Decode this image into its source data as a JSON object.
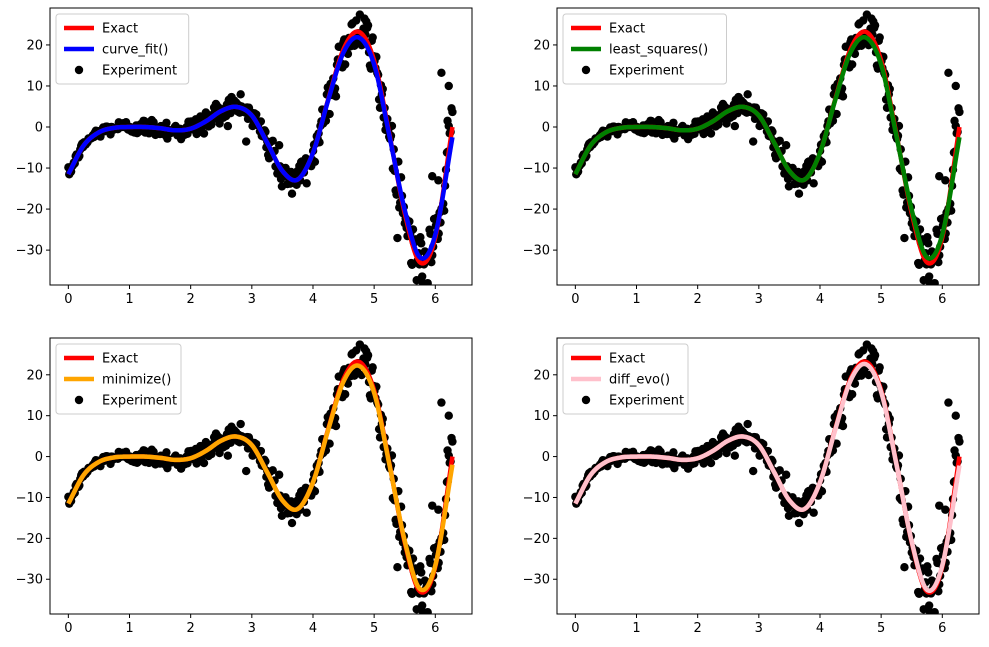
{
  "figure": {
    "panel_titles": [
      "",
      "",
      "",
      ""
    ]
  },
  "chart_data": [
    {
      "type": "line",
      "title": "",
      "xlabel": "",
      "ylabel": "",
      "xlim": [
        -0.3,
        6.6
      ],
      "ylim": [
        -38.5,
        29
      ],
      "xticks": [
        0,
        1,
        2,
        3,
        4,
        5,
        6
      ],
      "yticks": [
        -30,
        -20,
        -10,
        0,
        10,
        20
      ],
      "grid": false,
      "legend_position": "top-left",
      "series": [
        {
          "name": "Exact",
          "kind": "line",
          "color": "#ff0000"
        },
        {
          "name": "curve_fit()",
          "kind": "line",
          "color": "#0000ff"
        },
        {
          "name": "Experiment",
          "kind": "scatter",
          "color": "#000000"
        }
      ],
      "x": [
        0.0,
        0.25,
        0.5,
        0.75,
        1.0,
        1.25,
        1.5,
        1.75,
        2.0,
        2.25,
        2.5,
        2.75,
        3.0,
        3.25,
        3.5,
        3.75,
        4.0,
        4.25,
        4.5,
        4.75,
        5.0,
        5.25,
        5.5,
        5.75,
        6.0,
        6.28
      ],
      "exact": [
        -11.5,
        -4.5,
        -1.3,
        -0.2,
        0.0,
        0.0,
        -0.3,
        -0.8,
        -0.4,
        1.4,
        3.9,
        4.9,
        2.8,
        -3.8,
        -10.7,
        -12.8,
        -6.3,
        6.8,
        19.0,
        23.2,
        16.2,
        -1.8,
        -21.0,
        -33.0,
        -26.9,
        0.0
      ],
      "fit": [
        -11.5,
        -4.5,
        -1.3,
        -0.2,
        0.0,
        0.0,
        -0.3,
        -0.8,
        -0.4,
        1.4,
        3.9,
        4.9,
        2.8,
        -3.8,
        -10.7,
        -12.8,
        -6.3,
        6.6,
        18.2,
        21.8,
        15.2,
        -2.2,
        -20.2,
        -31.8,
        -26.2,
        -2.5
      ],
      "noise": {
        "amplitude_start": 0.6,
        "amplitude_growth": 0.55,
        "outliers": [
          [
            6.1,
            13.2
          ],
          [
            6.22,
            10.0
          ],
          [
            6.2,
            1.5
          ],
          [
            5.95,
            -12
          ],
          [
            6.05,
            -13
          ]
        ]
      }
    },
    {
      "type": "line",
      "title": "",
      "xlabel": "",
      "ylabel": "",
      "xlim": [
        -0.3,
        6.6
      ],
      "ylim": [
        -38.5,
        29
      ],
      "xticks": [
        0,
        1,
        2,
        3,
        4,
        5,
        6
      ],
      "yticks": [
        -30,
        -20,
        -10,
        0,
        10,
        20
      ],
      "grid": false,
      "legend_position": "top-left",
      "series": [
        {
          "name": "Exact",
          "kind": "line",
          "color": "#ff0000"
        },
        {
          "name": "least_squares()",
          "kind": "line",
          "color": "#008000"
        },
        {
          "name": "Experiment",
          "kind": "scatter",
          "color": "#000000"
        }
      ],
      "x": [
        0.0,
        0.25,
        0.5,
        0.75,
        1.0,
        1.25,
        1.5,
        1.75,
        2.0,
        2.25,
        2.5,
        2.75,
        3.0,
        3.25,
        3.5,
        3.75,
        4.0,
        4.25,
        4.5,
        4.75,
        5.0,
        5.25,
        5.5,
        5.75,
        6.0,
        6.28
      ],
      "exact": [
        -11.5,
        -4.5,
        -1.3,
        -0.2,
        0.0,
        0.0,
        -0.3,
        -0.8,
        -0.4,
        1.4,
        3.9,
        4.9,
        2.8,
        -3.8,
        -10.7,
        -12.8,
        -6.3,
        6.8,
        19.0,
        23.2,
        16.2,
        -1.8,
        -21.0,
        -33.0,
        -26.9,
        0.0
      ],
      "fit": [
        -11.5,
        -4.5,
        -1.3,
        -0.2,
        0.0,
        0.0,
        -0.3,
        -0.8,
        -0.4,
        1.4,
        3.9,
        4.9,
        2.8,
        -3.8,
        -10.7,
        -12.8,
        -6.3,
        6.6,
        18.2,
        21.8,
        15.2,
        -2.2,
        -20.2,
        -31.8,
        -26.2,
        -2.5
      ],
      "noise": {
        "amplitude_start": 0.6,
        "amplitude_growth": 0.55,
        "outliers": [
          [
            6.1,
            13.2
          ],
          [
            6.22,
            10.0
          ],
          [
            6.2,
            1.5
          ],
          [
            5.95,
            -12
          ],
          [
            6.05,
            -13
          ]
        ]
      }
    },
    {
      "type": "line",
      "title": "",
      "xlabel": "",
      "ylabel": "",
      "xlim": [
        -0.3,
        6.6
      ],
      "ylim": [
        -38.5,
        29
      ],
      "xticks": [
        0,
        1,
        2,
        3,
        4,
        5,
        6
      ],
      "yticks": [
        -30,
        -20,
        -10,
        0,
        10,
        20
      ],
      "grid": false,
      "legend_position": "top-left",
      "series": [
        {
          "name": "Exact",
          "kind": "line",
          "color": "#ff0000"
        },
        {
          "name": "minimize()",
          "kind": "line",
          "color": "#ffa500"
        },
        {
          "name": "Experiment",
          "kind": "scatter",
          "color": "#000000"
        }
      ],
      "x": [
        0.0,
        0.25,
        0.5,
        0.75,
        1.0,
        1.25,
        1.5,
        1.75,
        2.0,
        2.25,
        2.5,
        2.75,
        3.0,
        3.25,
        3.5,
        3.75,
        4.0,
        4.25,
        4.5,
        4.75,
        5.0,
        5.25,
        5.5,
        5.75,
        6.0,
        6.28
      ],
      "exact": [
        -11.5,
        -4.5,
        -1.3,
        -0.2,
        0.0,
        0.0,
        -0.3,
        -0.8,
        -0.4,
        1.4,
        3.9,
        4.9,
        2.8,
        -3.8,
        -10.7,
        -12.8,
        -6.3,
        6.8,
        19.0,
        23.2,
        16.2,
        -1.8,
        -21.0,
        -33.0,
        -26.9,
        0.0
      ],
      "fit": [
        -11.5,
        -4.5,
        -1.3,
        -0.2,
        0.0,
        0.0,
        -0.3,
        -0.8,
        -0.4,
        1.4,
        3.9,
        4.9,
        2.8,
        -3.8,
        -10.7,
        -12.8,
        -6.3,
        6.6,
        18.4,
        22.2,
        15.6,
        -2.0,
        -20.6,
        -32.4,
        -26.6,
        -2.0
      ],
      "noise": {
        "amplitude_start": 0.6,
        "amplitude_growth": 0.55,
        "outliers": [
          [
            6.1,
            13.2
          ],
          [
            6.22,
            10.0
          ],
          [
            6.2,
            1.5
          ],
          [
            5.95,
            -12
          ],
          [
            6.05,
            -13
          ]
        ]
      }
    },
    {
      "type": "line",
      "title": "",
      "xlabel": "",
      "ylabel": "",
      "xlim": [
        -0.3,
        6.6
      ],
      "ylim": [
        -38.5,
        29
      ],
      "xticks": [
        0,
        1,
        2,
        3,
        4,
        5,
        6
      ],
      "yticks": [
        -30,
        -20,
        -10,
        0,
        10,
        20
      ],
      "grid": false,
      "legend_position": "top-left",
      "series": [
        {
          "name": "Exact",
          "kind": "line",
          "color": "#ff0000"
        },
        {
          "name": "diff_evo()",
          "kind": "line",
          "color": "#ffc0cb"
        },
        {
          "name": "Experiment",
          "kind": "scatter",
          "color": "#000000"
        }
      ],
      "x": [
        0.0,
        0.25,
        0.5,
        0.75,
        1.0,
        1.25,
        1.5,
        1.75,
        2.0,
        2.25,
        2.5,
        2.75,
        3.0,
        3.25,
        3.5,
        3.75,
        4.0,
        4.25,
        4.5,
        4.75,
        5.0,
        5.25,
        5.5,
        5.75,
        6.0,
        6.28
      ],
      "exact": [
        -11.5,
        -4.5,
        -1.3,
        -0.2,
        0.0,
        0.0,
        -0.3,
        -0.8,
        -0.4,
        1.4,
        3.9,
        4.9,
        2.8,
        -3.8,
        -10.7,
        -12.8,
        -6.3,
        6.8,
        19.0,
        23.2,
        16.2,
        -1.8,
        -21.0,
        -33.0,
        -26.9,
        0.0
      ],
      "fit": [
        -11.5,
        -4.5,
        -1.3,
        -0.2,
        0.0,
        0.0,
        -0.3,
        -0.8,
        -0.4,
        1.4,
        3.9,
        4.9,
        2.8,
        -3.8,
        -10.7,
        -12.8,
        -6.3,
        6.6,
        18.6,
        22.6,
        15.8,
        -1.9,
        -20.8,
        -32.6,
        -26.6,
        -2.2
      ],
      "noise": {
        "amplitude_start": 0.6,
        "amplitude_growth": 0.55,
        "outliers": [
          [
            6.1,
            13.2
          ],
          [
            6.22,
            10.0
          ],
          [
            6.2,
            1.5
          ],
          [
            5.95,
            -12
          ],
          [
            6.05,
            -13
          ]
        ]
      }
    }
  ]
}
